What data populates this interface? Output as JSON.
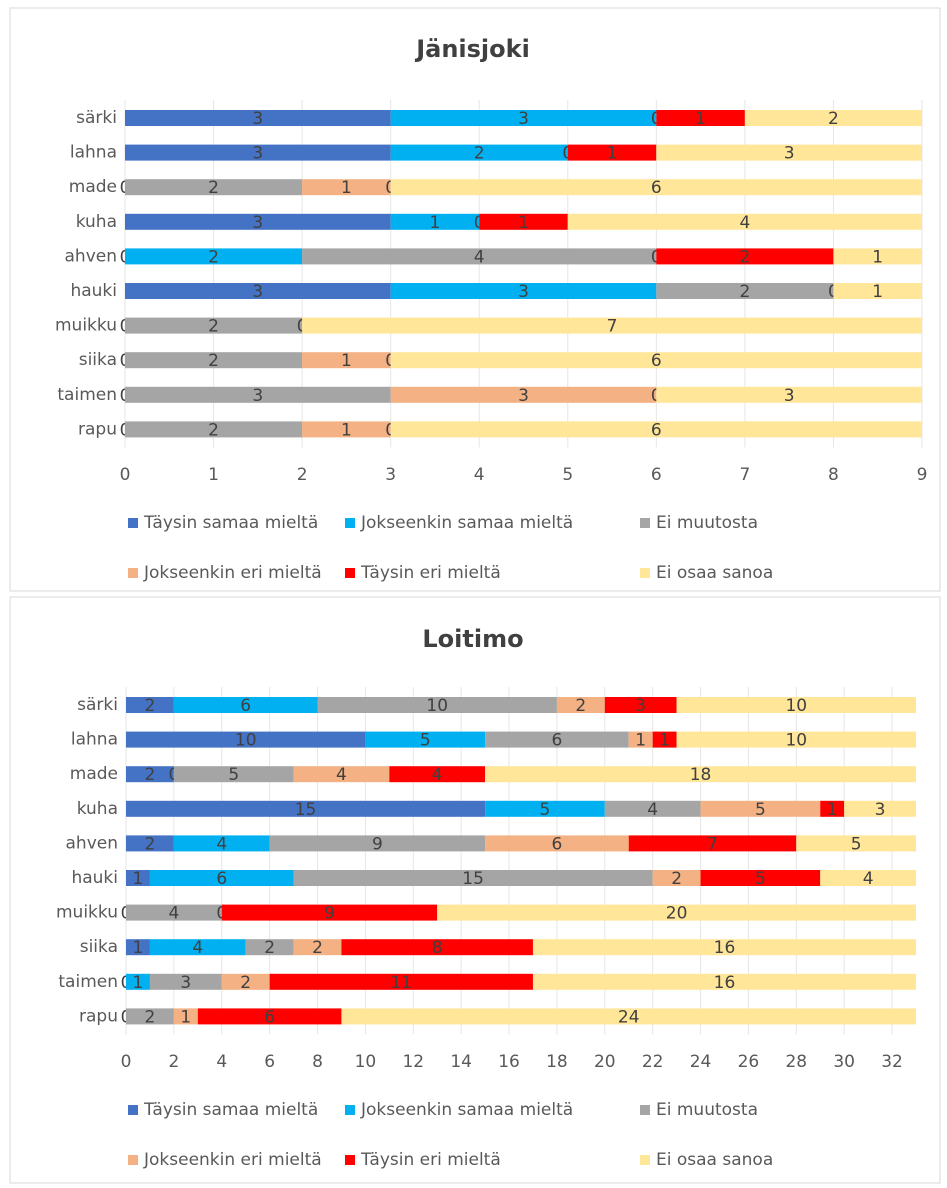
{
  "chart_data": [
    {
      "type": "stacked-bar-horizontal",
      "title": "Jänisjoki",
      "categories": [
        "särki",
        "lahna",
        "made",
        "kuha",
        "ahven",
        "hauki",
        "muikku",
        "siika",
        "taimen",
        "rapu"
      ],
      "series": [
        {
          "name": "Täysin samaa mieltä",
          "color": "#4472c4",
          "values": [
            3,
            3,
            0,
            3,
            0,
            3,
            0,
            0,
            0,
            0
          ]
        },
        {
          "name": "Jokseenkin samaa mieltä",
          "color": "#00b0f0",
          "values": [
            3,
            2,
            null,
            1,
            2,
            3,
            null,
            null,
            null,
            null
          ]
        },
        {
          "name": "Ei muutosta",
          "color": "#a5a5a5",
          "values": [
            0,
            0,
            2,
            0,
            4,
            2,
            2,
            2,
            3,
            2
          ]
        },
        {
          "name": "Jokseenkin eri mieltä",
          "color": "#f4b183",
          "values": [
            null,
            null,
            1,
            null,
            0,
            0,
            0,
            1,
            3,
            1
          ]
        },
        {
          "name": "Täysin eri mieltä",
          "color": "#ff0000",
          "values": [
            1,
            1,
            0,
            1,
            2,
            null,
            null,
            0,
            0,
            0
          ]
        },
        {
          "name": "Ei osaa sanoa",
          "color": "#ffe699",
          "values": [
            2,
            3,
            6,
            4,
            1,
            1,
            7,
            6,
            3,
            6
          ]
        }
      ],
      "xlim": [
        0,
        9
      ],
      "xticks": [
        0,
        1,
        2,
        3,
        4,
        5,
        6,
        7,
        8,
        9
      ],
      "grid": true
    },
    {
      "type": "stacked-bar-horizontal",
      "title": "Loitimo",
      "categories": [
        "särki",
        "lahna",
        "made",
        "kuha",
        "ahven",
        "hauki",
        "muikku",
        "siika",
        "taimen",
        "rapu"
      ],
      "series": [
        {
          "name": "Täysin samaa mieltä",
          "color": "#4472c4",
          "values": [
            2,
            10,
            2,
            15,
            2,
            1,
            0,
            1,
            0,
            0
          ]
        },
        {
          "name": "Jokseenkin samaa mieltä",
          "color": "#00b0f0",
          "values": [
            6,
            5,
            0,
            5,
            4,
            6,
            null,
            4,
            1,
            null
          ]
        },
        {
          "name": "Ei muutosta",
          "color": "#a5a5a5",
          "values": [
            10,
            6,
            5,
            4,
            9,
            15,
            4,
            2,
            3,
            2
          ]
        },
        {
          "name": "Jokseenkin eri mieltä",
          "color": "#f4b183",
          "values": [
            2,
            1,
            4,
            5,
            6,
            2,
            0,
            2,
            2,
            1
          ]
        },
        {
          "name": "Täysin eri mieltä",
          "color": "#ff0000",
          "values": [
            3,
            1,
            4,
            1,
            7,
            5,
            9,
            8,
            11,
            6
          ]
        },
        {
          "name": "Ei osaa sanoa",
          "color": "#ffe699",
          "values": [
            10,
            10,
            18,
            3,
            5,
            4,
            20,
            16,
            16,
            24
          ]
        }
      ],
      "xlim": [
        0,
        33
      ],
      "xticks": [
        0,
        2,
        4,
        6,
        8,
        10,
        12,
        14,
        16,
        18,
        20,
        22,
        24,
        26,
        28,
        30,
        32
      ],
      "grid": true
    }
  ]
}
